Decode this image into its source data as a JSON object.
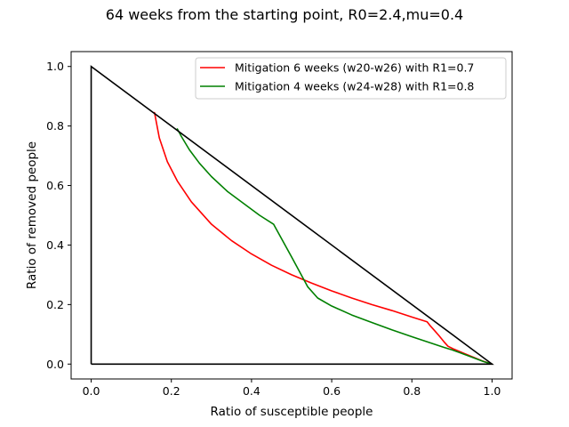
{
  "chart_data": {
    "type": "line",
    "title": "64 weeks from the starting point, R0=2.4,mu=0.4",
    "xlabel": "Ratio of susceptible people",
    "ylabel": "Ratio of removed people",
    "xlim": [
      -0.05,
      1.05
    ],
    "ylim": [
      -0.05,
      1.05
    ],
    "xticks": [
      0.0,
      0.2,
      0.4,
      0.6,
      0.8,
      1.0
    ],
    "yticks": [
      0.0,
      0.2,
      0.4,
      0.6,
      0.8,
      1.0
    ],
    "xtick_labels": [
      "0.0",
      "0.2",
      "0.4",
      "0.6",
      "0.8",
      "1.0"
    ],
    "ytick_labels": [
      "0.0",
      "0.2",
      "0.4",
      "0.6",
      "0.8",
      "1.0"
    ],
    "legend_position": "top-right",
    "grid": false,
    "boundary": {
      "name": "triangle",
      "color": "#000000",
      "x": [
        0.0,
        0.0,
        1.0,
        0.0
      ],
      "y": [
        0.0,
        1.0,
        0.0,
        0.0
      ]
    },
    "series": [
      {
        "name": "Mitigation 6 weeks (w20-w26) with R1=0.7",
        "color": "#ff0000",
        "x": [
          1.0,
          0.99,
          0.975,
          0.955,
          0.93,
          0.905,
          0.89,
          0.88,
          0.868,
          0.855,
          0.845,
          0.838,
          0.8,
          0.75,
          0.7,
          0.65,
          0.6,
          0.55,
          0.5,
          0.45,
          0.4,
          0.35,
          0.3,
          0.25,
          0.215,
          0.19,
          0.17,
          0.158
        ],
        "y": [
          0.0,
          0.004,
          0.011,
          0.022,
          0.036,
          0.05,
          0.06,
          0.075,
          0.095,
          0.115,
          0.13,
          0.142,
          0.158,
          0.18,
          0.2,
          0.222,
          0.246,
          0.272,
          0.3,
          0.332,
          0.37,
          0.415,
          0.47,
          0.545,
          0.615,
          0.68,
          0.76,
          0.845
        ]
      },
      {
        "name": "Mitigation 4 weeks (w24-w28) with R1=0.8",
        "color": "#008000",
        "x": [
          1.0,
          0.98,
          0.96,
          0.94,
          0.92,
          0.9,
          0.88,
          0.86,
          0.84,
          0.82,
          0.8,
          0.75,
          0.7,
          0.65,
          0.6,
          0.565,
          0.54,
          0.5,
          0.455,
          0.42,
          0.38,
          0.34,
          0.3,
          0.27,
          0.245,
          0.225,
          0.215
        ],
        "y": [
          0.0,
          0.008,
          0.018,
          0.028,
          0.038,
          0.048,
          0.056,
          0.065,
          0.074,
          0.083,
          0.092,
          0.115,
          0.14,
          0.165,
          0.195,
          0.222,
          0.26,
          0.36,
          0.47,
          0.5,
          0.54,
          0.58,
          0.63,
          0.675,
          0.72,
          0.765,
          0.79
        ]
      }
    ]
  }
}
